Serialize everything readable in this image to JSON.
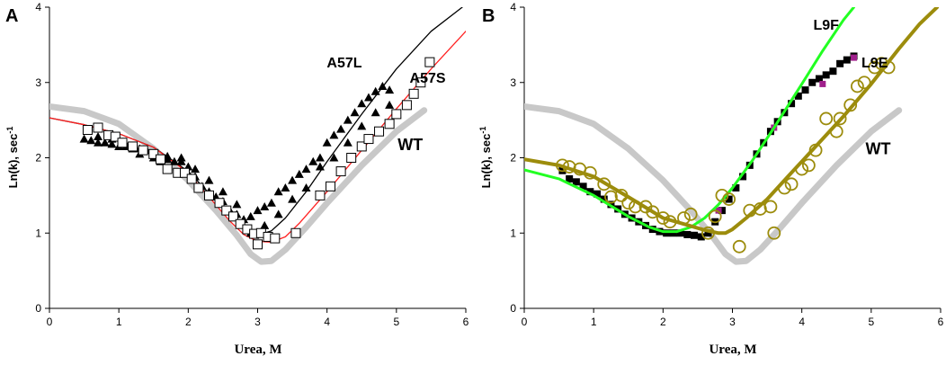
{
  "chart_data": [
    {
      "type": "scatter",
      "panel_label": "A",
      "xlabel": "Urea, M",
      "ylabel": "Ln(k), sec",
      "ylabel_sup": "-1",
      "xlim": [
        0,
        6
      ],
      "ylim": [
        0,
        4
      ],
      "x_ticks": [
        0,
        1,
        2,
        3,
        4,
        5,
        6
      ],
      "y_ticks": [
        0,
        1,
        2,
        3,
        4
      ],
      "grid": false,
      "annotations": [
        {
          "text": "A57L",
          "x": 4.25,
          "y": 3.2
        },
        {
          "text": "A57S",
          "x": 5.45,
          "y": 3.0
        },
        {
          "text": "WT",
          "x": 5.2,
          "y": 2.1
        }
      ],
      "series": [
        {
          "name": "WT",
          "kind": "line",
          "color": "#c8c8c8",
          "width": 7,
          "x": [
            0,
            0.5,
            1,
            1.5,
            2,
            2.4,
            2.7,
            2.9,
            3.05,
            3.2,
            3.4,
            3.7,
            4,
            4.5,
            5,
            5.4
          ],
          "y": [
            2.68,
            2.62,
            2.45,
            2.12,
            1.7,
            1.3,
            0.97,
            0.72,
            0.62,
            0.63,
            0.78,
            1.08,
            1.4,
            1.9,
            2.35,
            2.63
          ]
        },
        {
          "name": "A57L fit",
          "kind": "line",
          "color": "#000000",
          "width": 1.3,
          "x": [
            0,
            0.5,
            1,
            1.5,
            2,
            2.3,
            2.6,
            2.8,
            3.0,
            3.1,
            3.2,
            3.4,
            3.7,
            4,
            4.5,
            5,
            5.5,
            5.95
          ],
          "y": [
            2.53,
            2.44,
            2.32,
            2.14,
            1.82,
            1.53,
            1.24,
            1.08,
            1.0,
            1.0,
            1.03,
            1.2,
            1.55,
            1.95,
            2.58,
            3.18,
            3.68,
            4.0
          ]
        },
        {
          "name": "A57S fit",
          "kind": "line",
          "color": "#ff2020",
          "width": 1.3,
          "x": [
            0,
            0.5,
            1,
            1.5,
            2,
            2.3,
            2.6,
            2.8,
            3.0,
            3.2,
            3.4,
            3.6,
            4,
            4.5,
            5,
            5.5,
            6
          ],
          "y": [
            2.53,
            2.44,
            2.32,
            2.14,
            1.8,
            1.48,
            1.16,
            0.98,
            0.89,
            0.88,
            0.95,
            1.13,
            1.55,
            2.1,
            2.65,
            3.18,
            3.68
          ]
        },
        {
          "name": "A57L",
          "kind": "markers",
          "marker": "filled-triangle",
          "color": "#000000",
          "size": 10,
          "x": [
            0.5,
            0.6,
            0.7,
            0.8,
            0.9,
            1.0,
            1.1,
            1.2,
            1.3,
            1.4,
            1.5,
            1.6,
            1.7,
            1.8,
            1.9,
            2.0,
            2.1,
            2.2,
            2.3,
            2.4,
            2.5,
            2.6,
            2.7,
            2.8,
            2.9,
            3.0,
            3.1,
            3.2,
            3.3,
            3.4,
            3.5,
            3.6,
            3.7,
            3.8,
            3.9,
            4.0,
            4.1,
            4.2,
            4.3,
            4.4,
            4.5,
            4.6,
            4.7,
            4.8,
            4.9,
            0.7,
            0.9,
            1.1,
            1.3,
            1.5,
            1.7,
            1.9,
            2.1,
            2.3,
            2.5,
            2.7,
            2.9,
            3.1,
            3.3,
            3.5,
            3.7,
            3.9,
            4.1,
            4.3,
            4.5,
            4.7,
            4.9
          ],
          "y": [
            2.25,
            2.23,
            2.28,
            2.2,
            2.25,
            2.15,
            2.18,
            2.12,
            2.05,
            2.1,
            2.0,
            1.95,
            2.02,
            1.95,
            2.0,
            1.88,
            1.75,
            1.62,
            1.55,
            1.48,
            1.42,
            1.3,
            1.25,
            1.18,
            1.22,
            1.3,
            1.35,
            1.4,
            1.55,
            1.6,
            1.7,
            1.78,
            1.85,
            1.95,
            2.0,
            2.2,
            2.3,
            2.38,
            2.5,
            2.6,
            2.72,
            2.8,
            2.88,
            2.95,
            2.9,
            2.2,
            2.18,
            2.15,
            2.12,
            2.05,
            1.98,
            1.95,
            1.85,
            1.7,
            1.55,
            1.38,
            1.0,
            1.1,
            1.25,
            1.45,
            1.6,
            1.88,
            2.0,
            2.2,
            2.42,
            2.6,
            2.7
          ]
        },
        {
          "name": "A57S",
          "kind": "markers",
          "marker": "open-square",
          "color": "#000000",
          "size": 10,
          "x": [
            0.55,
            0.7,
            0.85,
            0.95,
            1.05,
            1.2,
            1.35,
            1.5,
            1.6,
            1.7,
            1.85,
            1.95,
            2.05,
            2.15,
            2.3,
            2.45,
            2.55,
            2.65,
            2.75,
            2.85,
            2.95,
            3.0,
            3.05,
            3.15,
            3.25,
            3.55,
            3.9,
            4.05,
            4.2,
            4.35,
            4.5,
            4.6,
            4.75,
            4.9,
            5.0,
            5.15,
            5.25,
            5.35,
            5.48
          ],
          "y": [
            2.37,
            2.4,
            2.3,
            2.28,
            2.2,
            2.15,
            2.1,
            2.05,
            1.98,
            1.85,
            1.8,
            1.8,
            1.72,
            1.6,
            1.5,
            1.4,
            1.3,
            1.22,
            1.12,
            1.05,
            0.99,
            0.85,
            1.0,
            0.95,
            0.93,
            1.0,
            1.5,
            1.62,
            1.82,
            2.0,
            2.15,
            2.25,
            2.35,
            2.45,
            2.58,
            2.7,
            2.85,
            3.0,
            3.27
          ]
        }
      ]
    },
    {
      "type": "scatter",
      "panel_label": "B",
      "xlabel": "Urea, M",
      "ylabel": "Ln(k), sec",
      "ylabel_sup": "-1",
      "xlim": [
        0,
        6
      ],
      "ylim": [
        0,
        4
      ],
      "x_ticks": [
        0,
        1,
        2,
        3,
        4,
        5,
        6
      ],
      "y_ticks": [
        0,
        1,
        2,
        3,
        4
      ],
      "grid": false,
      "annotations": [
        {
          "text": "L9F",
          "x": 4.35,
          "y": 3.7
        },
        {
          "text": "L9E",
          "x": 5.05,
          "y": 3.2
        },
        {
          "text": "WT",
          "x": 5.1,
          "y": 2.05
        }
      ],
      "series": [
        {
          "name": "WT",
          "kind": "line",
          "color": "#c8c8c8",
          "width": 7,
          "x": [
            0,
            0.5,
            1,
            1.5,
            2,
            2.4,
            2.7,
            2.9,
            3.05,
            3.2,
            3.4,
            3.7,
            4,
            4.5,
            5,
            5.4
          ],
          "y": [
            2.68,
            2.62,
            2.45,
            2.12,
            1.7,
            1.3,
            0.97,
            0.72,
            0.62,
            0.63,
            0.78,
            1.08,
            1.4,
            1.9,
            2.35,
            2.63
          ]
        },
        {
          "name": "L9F",
          "kind": "markers",
          "marker": "filled-square",
          "color": "#000000",
          "size": 8,
          "x": [
            0.55,
            0.65,
            0.75,
            0.85,
            0.95,
            1.05,
            1.15,
            1.25,
            1.35,
            1.45,
            1.55,
            1.65,
            1.75,
            1.85,
            1.95,
            2.05,
            2.15,
            2.25,
            2.35,
            2.45,
            2.55,
            2.65,
            2.75,
            2.85,
            2.95,
            3.05,
            3.15,
            3.25,
            3.35,
            3.45,
            3.55,
            3.65,
            3.75,
            3.85,
            3.95,
            4.05,
            4.15,
            4.25,
            4.35,
            4.45,
            4.55,
            4.65,
            4.75
          ],
          "y": [
            1.83,
            1.72,
            1.68,
            1.62,
            1.55,
            1.52,
            1.45,
            1.38,
            1.32,
            1.25,
            1.2,
            1.15,
            1.1,
            1.05,
            1.02,
            1.0,
            1.0,
            1.0,
            0.98,
            0.97,
            0.95,
            1.0,
            1.15,
            1.3,
            1.45,
            1.6,
            1.75,
            1.9,
            2.05,
            2.2,
            2.35,
            2.48,
            2.6,
            2.72,
            2.82,
            2.9,
            3.0,
            3.05,
            3.1,
            3.15,
            3.25,
            3.3,
            3.35
          ]
        },
        {
          "name": "L9F (purple)",
          "kind": "markers",
          "marker": "filled-square",
          "color": "#a0208c",
          "size": 7,
          "x": [
            2.8,
            3.6,
            4.3,
            4.75
          ],
          "y": [
            1.3,
            2.4,
            2.98,
            3.33
          ]
        },
        {
          "name": "L9F fit",
          "kind": "line",
          "color": "#22ff22",
          "width": 3,
          "x": [
            0,
            0.5,
            1,
            1.5,
            1.8,
            2.0,
            2.2,
            2.4,
            2.6,
            2.8,
            3.0,
            3.3,
            3.6,
            4.0,
            4.3,
            4.6,
            4.75
          ],
          "y": [
            1.84,
            1.72,
            1.5,
            1.22,
            1.08,
            1.02,
            1.02,
            1.08,
            1.2,
            1.38,
            1.6,
            1.98,
            2.4,
            2.98,
            3.42,
            3.83,
            4.0
          ]
        },
        {
          "name": "L9E fit",
          "kind": "line",
          "color": "#9c8c0c",
          "width": 4,
          "x": [
            0,
            0.5,
            1,
            1.5,
            2.0,
            2.3,
            2.6,
            2.8,
            2.9,
            3.0,
            3.2,
            3.5,
            3.8,
            4.2,
            4.6,
            5.0,
            5.4,
            5.7,
            5.95
          ],
          "y": [
            1.98,
            1.9,
            1.75,
            1.48,
            1.2,
            1.12,
            1.04,
            1.0,
            1.0,
            1.05,
            1.2,
            1.45,
            1.75,
            2.15,
            2.55,
            2.98,
            3.45,
            3.78,
            4.0
          ]
        },
        {
          "name": "L9E",
          "kind": "markers",
          "marker": "open-circle",
          "color": "#9c8c0c",
          "size": 13,
          "x": [
            0.55,
            0.65,
            0.8,
            0.95,
            1.15,
            1.25,
            1.4,
            1.5,
            1.6,
            1.75,
            1.85,
            2.0,
            2.1,
            2.3,
            2.4,
            2.65,
            2.75,
            2.85,
            2.95,
            3.1,
            3.25,
            3.4,
            3.55,
            3.6,
            3.75,
            3.85,
            4.0,
            4.1,
            4.2,
            4.35,
            4.5,
            4.55,
            4.7,
            4.8,
            4.9,
            5.05,
            5.15,
            5.25
          ],
          "y": [
            1.9,
            1.88,
            1.85,
            1.8,
            1.65,
            1.48,
            1.5,
            1.4,
            1.35,
            1.35,
            1.28,
            1.2,
            1.15,
            1.2,
            1.25,
            1.0,
            1.22,
            1.5,
            1.45,
            0.82,
            1.3,
            1.32,
            1.35,
            1.0,
            1.6,
            1.65,
            1.85,
            1.9,
            2.1,
            2.52,
            2.35,
            2.52,
            2.7,
            2.95,
            3.0,
            3.2,
            3.25,
            3.2
          ]
        }
      ]
    }
  ]
}
